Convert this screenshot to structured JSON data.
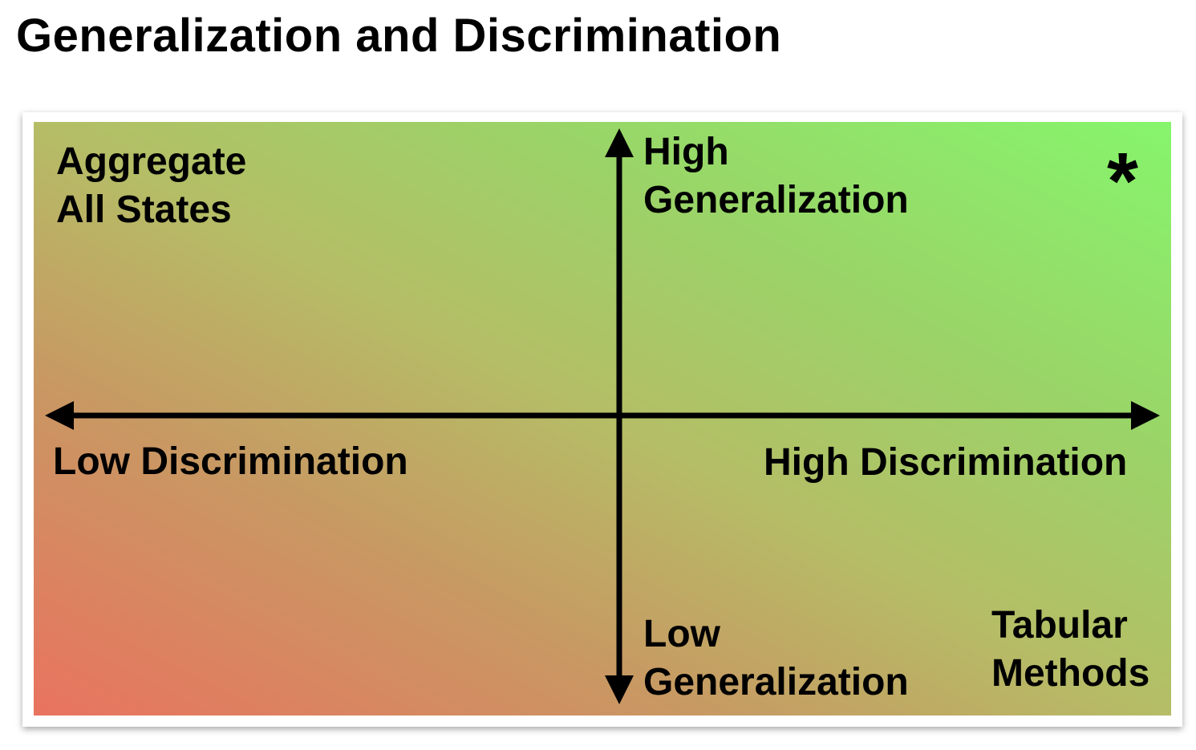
{
  "title": "Generalization and Discrimination",
  "quadrant_labels": {
    "top_left": [
      "Aggregate",
      "All States"
    ],
    "bottom_right": [
      "Tabular",
      "Methods"
    ],
    "top_right_marker": "*"
  },
  "axes": {
    "vertical_top": [
      "High",
      "Generalization"
    ],
    "vertical_bottom": [
      "Low",
      "Generalization"
    ],
    "horizontal_left": "Low Discrimination",
    "horizontal_right": "High Discrimination"
  },
  "colors": {
    "gradient_bottom_left": "#e9735f",
    "gradient_top_right": "#86f56c",
    "axis": "#000000"
  }
}
